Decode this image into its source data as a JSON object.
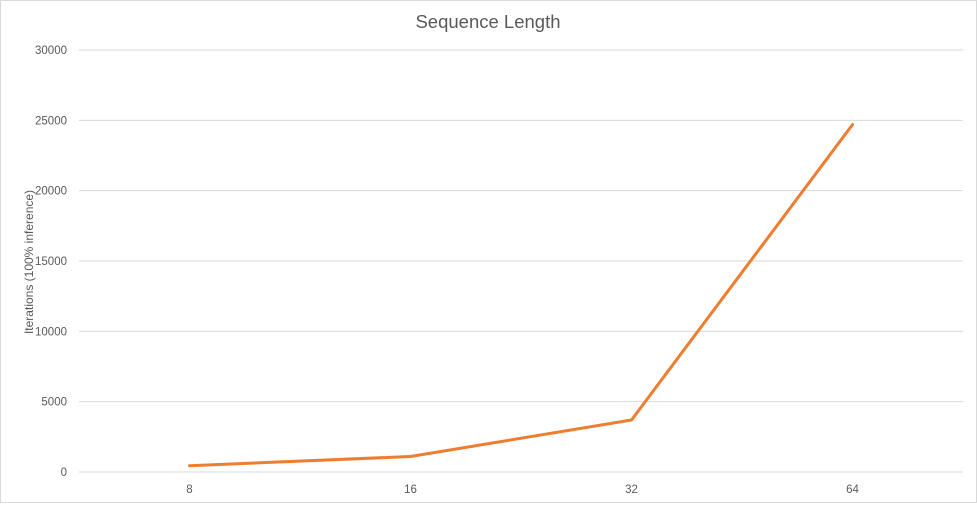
{
  "chart_data": {
    "type": "line",
    "title": "Sequence Length",
    "xlabel": "",
    "ylabel": "Iterations (100% inference)",
    "categories": [
      "8",
      "16",
      "32",
      "64"
    ],
    "series": [
      {
        "values": [
          450,
          1100,
          3700,
          24700
        ],
        "color": "#ED7D31"
      }
    ],
    "ylim": [
      0,
      30000
    ],
    "yticks": [
      0,
      5000,
      10000,
      15000,
      20000,
      25000,
      30000
    ],
    "grid": true,
    "legend": "none"
  }
}
